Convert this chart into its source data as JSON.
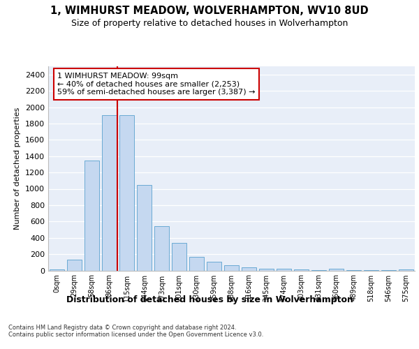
{
  "title1": "1, WIMHURST MEADOW, WOLVERHAMPTON, WV10 8UD",
  "title2": "Size of property relative to detached houses in Wolverhampton",
  "xlabel": "Distribution of detached houses by size in Wolverhampton",
  "ylabel": "Number of detached properties",
  "footnote": "Contains HM Land Registry data © Crown copyright and database right 2024.\nContains public sector information licensed under the Open Government Licence v3.0.",
  "categories": [
    "0sqm",
    "29sqm",
    "58sqm",
    "86sqm",
    "115sqm",
    "144sqm",
    "173sqm",
    "201sqm",
    "230sqm",
    "259sqm",
    "288sqm",
    "316sqm",
    "345sqm",
    "374sqm",
    "403sqm",
    "431sqm",
    "460sqm",
    "489sqm",
    "518sqm",
    "546sqm",
    "575sqm"
  ],
  "values": [
    15,
    130,
    1350,
    1900,
    1900,
    1050,
    540,
    335,
    165,
    110,
    60,
    35,
    25,
    20,
    10,
    5,
    25,
    5,
    5,
    5,
    15
  ],
  "bar_color": "#c5d8f0",
  "bar_edge_color": "#6aaad4",
  "bar_width": 0.85,
  "vline_x": 3.45,
  "vline_color": "#cc0000",
  "annotation_text": "1 WIMHURST MEADOW: 99sqm\n← 40% of detached houses are smaller (2,253)\n59% of semi-detached houses are larger (3,387) →",
  "annotation_box_color": "#ffffff",
  "annotation_box_edge": "#cc0000",
  "ylim": [
    0,
    2500
  ],
  "yticks": [
    0,
    200,
    400,
    600,
    800,
    1000,
    1200,
    1400,
    1600,
    1800,
    2000,
    2200,
    2400
  ],
  "plot_bg_color": "#e8eef8"
}
